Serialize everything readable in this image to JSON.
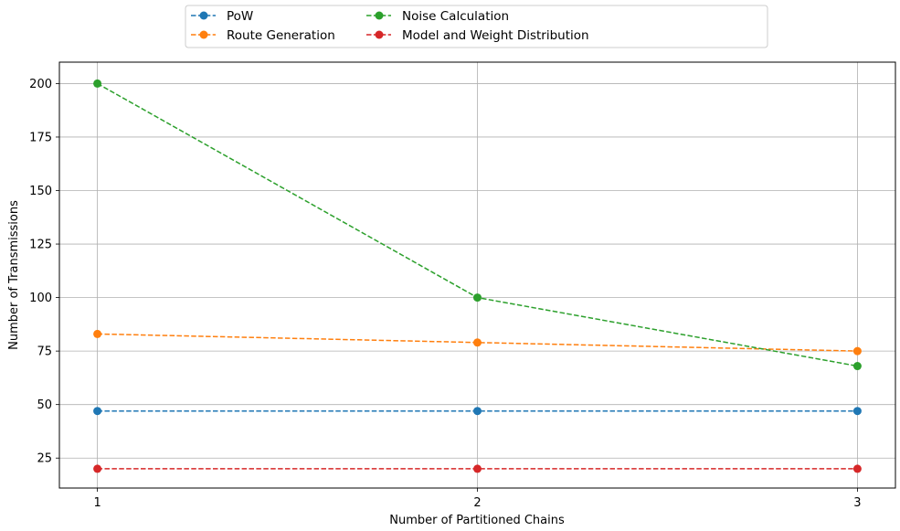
{
  "chart_data": {
    "type": "line",
    "title": "",
    "xlabel": "Number of Partitioned Chains",
    "ylabel": "Number of Transmissions",
    "x": [
      1,
      2,
      3
    ],
    "x_tick_labels": [
      "1",
      "2",
      "3"
    ],
    "xlim": [
      0.9,
      3.1
    ],
    "ylim": [
      11,
      210
    ],
    "y_ticks": [
      25,
      50,
      75,
      100,
      125,
      150,
      175,
      200
    ],
    "grid": true,
    "line_style": "dashed",
    "marker": "circle",
    "legend_placement": "top-center, above plot",
    "series": [
      {
        "name": "PoW",
        "values": [
          47,
          47,
          47
        ],
        "color": "#1f77b4"
      },
      {
        "name": "Route Generation",
        "values": [
          83,
          79,
          75
        ],
        "color": "#ff7f0e"
      },
      {
        "name": "Noise Calculation",
        "values": [
          200,
          100,
          68
        ],
        "color": "#2ca02c"
      },
      {
        "name": "Model and Weight Distribution",
        "values": [
          20,
          20,
          20
        ],
        "color": "#d62728"
      }
    ]
  }
}
